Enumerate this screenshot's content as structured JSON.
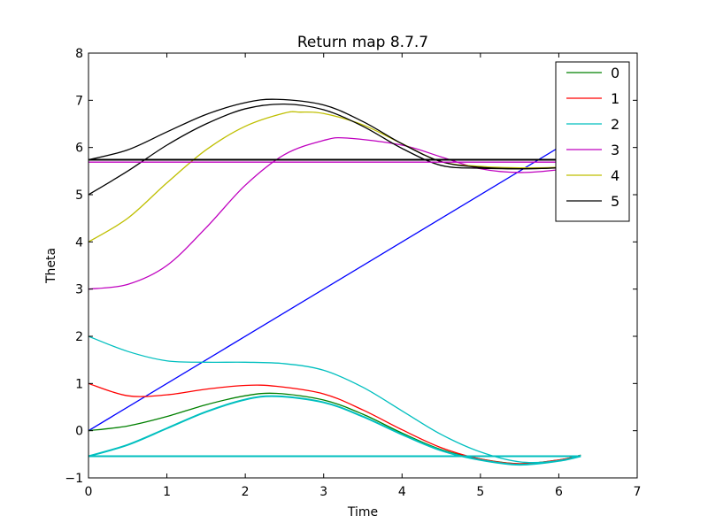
{
  "chart_data": {
    "type": "line",
    "title": "Return map 8.7.7",
    "xlabel": "Time",
    "ylabel": "Theta",
    "xlim": [
      0,
      7
    ],
    "ylim": [
      -1,
      8
    ],
    "xticks": [
      "0",
      "1",
      "2",
      "3",
      "4",
      "5",
      "6",
      "7"
    ],
    "yticks": [
      "−1",
      "0",
      "1",
      "2",
      "3",
      "4",
      "5",
      "6",
      "7",
      "8"
    ],
    "grid": false,
    "legend_position": "top-right",
    "legend": [
      {
        "label": "0",
        "color": "#008000"
      },
      {
        "label": "1",
        "color": "#ff0000"
      },
      {
        "label": "2",
        "color": "#00bfbf"
      },
      {
        "label": "3",
        "color": "#bf00bf"
      },
      {
        "label": "4",
        "color": "#bfbf00"
      },
      {
        "label": "5",
        "color": "#000000"
      }
    ],
    "series": [
      {
        "name": "0",
        "color": "#008000",
        "x": [
          0,
          0.5,
          1,
          1.5,
          2,
          2.4,
          3,
          3.5,
          4,
          4.5,
          5,
          5.5,
          6,
          6.28
        ],
        "y": [
          0,
          0.1,
          0.3,
          0.55,
          0.74,
          0.79,
          0.65,
          0.35,
          -0.05,
          -0.4,
          -0.6,
          -0.7,
          -0.62,
          -0.52
        ]
      },
      {
        "name": "1",
        "color": "#ff0000",
        "x": [
          0,
          0.5,
          1,
          1.5,
          2,
          2.4,
          3,
          3.5,
          4,
          4.5,
          5,
          5.5,
          6,
          6.28
        ],
        "y": [
          1,
          0.74,
          0.76,
          0.88,
          0.96,
          0.94,
          0.78,
          0.44,
          0.02,
          -0.36,
          -0.6,
          -0.7,
          -0.62,
          -0.52
        ]
      },
      {
        "name": "2",
        "color": "#00bfbf",
        "x": [
          0,
          0.5,
          1,
          1.5,
          2,
          2.5,
          3,
          3.5,
          4,
          4.5,
          5,
          5.5,
          6,
          6.28
        ],
        "y": [
          2,
          1.68,
          1.48,
          1.45,
          1.45,
          1.42,
          1.28,
          0.92,
          0.42,
          -0.08,
          -0.45,
          -0.66,
          -0.64,
          -0.52
        ]
      },
      {
        "name": "3",
        "color": "#bf00bf",
        "x": [
          0,
          0.5,
          1,
          1.5,
          2,
          2.5,
          3,
          3.3,
          4,
          4.5,
          5,
          5.5,
          6,
          6.28
        ],
        "y": [
          3,
          3.1,
          3.5,
          4.3,
          5.2,
          5.85,
          6.15,
          6.2,
          6.05,
          5.8,
          5.55,
          5.47,
          5.53,
          5.62
        ]
      },
      {
        "name": "4",
        "color": "#bfbf00",
        "x": [
          0,
          0.5,
          1,
          1.5,
          2,
          2.5,
          2.7,
          3,
          3.5,
          4,
          4.5,
          5,
          5.5,
          6,
          6.28
        ],
        "y": [
          4,
          4.5,
          5.25,
          5.95,
          6.45,
          6.73,
          6.75,
          6.72,
          6.48,
          6.08,
          5.7,
          5.6,
          5.57,
          5.58,
          5.62
        ]
      },
      {
        "name": "5",
        "color": "#000000",
        "x": [
          0,
          0.5,
          1,
          1.5,
          2,
          2.5,
          3,
          3.5,
          4,
          4.5,
          5,
          5.5,
          6,
          6.28
        ],
        "y": [
          5,
          5.5,
          6.05,
          6.5,
          6.82,
          6.92,
          6.8,
          6.45,
          5.98,
          5.62,
          5.56,
          5.55,
          5.57,
          5.62
        ]
      },
      {
        "name": "",
        "color": "#0000ff",
        "x": [
          0,
          6.28
        ],
        "y": [
          0,
          6.28
        ]
      },
      {
        "name": "",
        "color": "#000000",
        "x": [
          0,
          0.5,
          1,
          1.5,
          2,
          2.4,
          3,
          3.5,
          4,
          4.5,
          5,
          5.5,
          6,
          6.28
        ],
        "y": [
          5.74,
          5.95,
          6.33,
          6.7,
          6.95,
          7.02,
          6.9,
          6.55,
          6.08,
          5.7,
          5.58,
          5.55,
          5.57,
          5.62
        ]
      },
      {
        "name": "",
        "color": "#00bfbf",
        "x": [
          0,
          0.5,
          1,
          1.5,
          2,
          2.4,
          3,
          3.5,
          4,
          4.5,
          5,
          5.5,
          6,
          6.28
        ],
        "y": [
          -0.54,
          -0.3,
          0.05,
          0.4,
          0.66,
          0.73,
          0.6,
          0.3,
          -0.08,
          -0.42,
          -0.62,
          -0.72,
          -0.64,
          -0.54
        ]
      },
      {
        "name": "",
        "color": "#000000",
        "x": [
          0,
          6.28
        ],
        "y": [
          5.74,
          5.74
        ]
      },
      {
        "name": "",
        "color": "#bf00bf",
        "x": [
          0,
          6.28
        ],
        "y": [
          5.69,
          5.69
        ]
      },
      {
        "name": "",
        "color": "#00bfbf",
        "x": [
          0,
          6.28
        ],
        "y": [
          -0.54,
          -0.54
        ]
      }
    ]
  }
}
